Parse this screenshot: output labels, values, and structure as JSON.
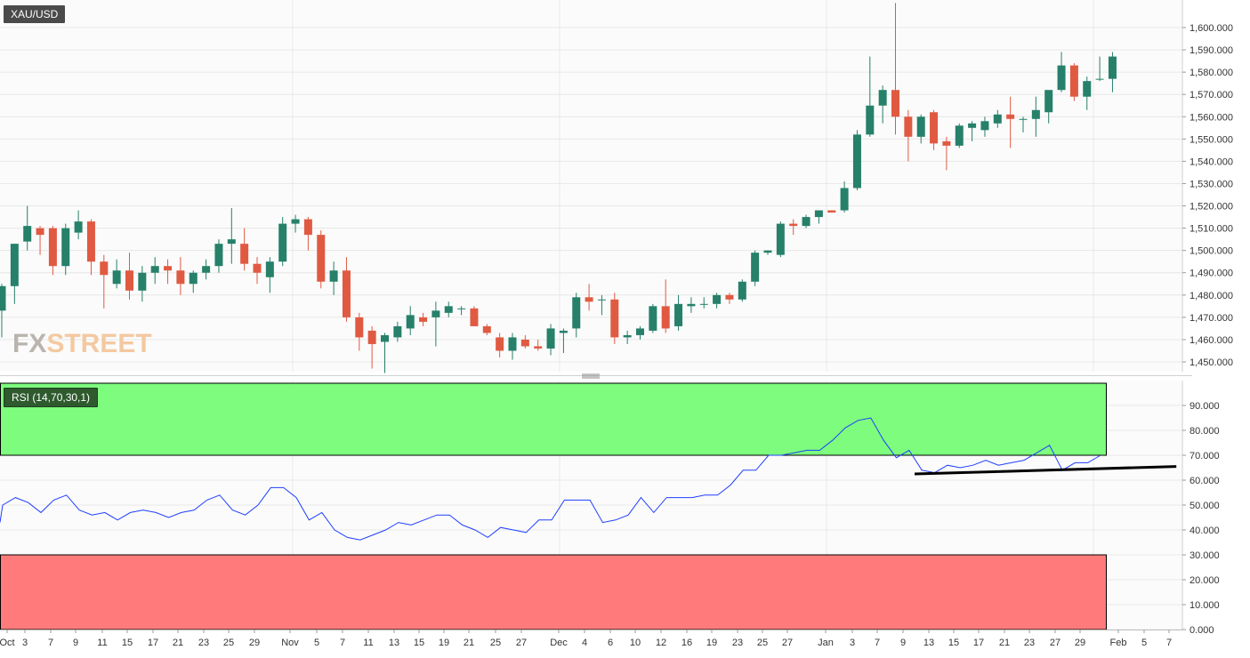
{
  "chart_title": "XAU/USD",
  "watermark": {
    "part1": "FX",
    "part2": "STREET"
  },
  "colors": {
    "up": "#26806a",
    "down": "#e05a42",
    "rsi_line": "#1f3fff",
    "overbought_zone": "#7dfc7d",
    "oversold_zone": "#ff7b7b",
    "grid": "#e8e8e8",
    "trendline": "#000000"
  },
  "chart_data": [
    {
      "type": "candlestick",
      "title": "XAU/USD",
      "y_axis_side": "right",
      "ylim": [
        1445,
        1612
      ],
      "y_ticks": [
        "1,450.000",
        "1,460.000",
        "1,470.000",
        "1,480.000",
        "1,490.000",
        "1,500.000",
        "1,510.000",
        "1,520.000",
        "1,530.000",
        "1,540.000",
        "1,550.000",
        "1,560.000",
        "1,570.000",
        "1,580.000",
        "1,590.000",
        "1,600.000"
      ],
      "y_tick_values": [
        1450,
        1460,
        1470,
        1480,
        1490,
        1500,
        1510,
        1520,
        1530,
        1540,
        1550,
        1560,
        1570,
        1580,
        1590,
        1600
      ],
      "x_tick_labels": [
        "Oct",
        "3",
        "7",
        "9",
        "11",
        "15",
        "17",
        "21",
        "23",
        "25",
        "29",
        "Nov",
        "5",
        "7",
        "11",
        "13",
        "15",
        "19",
        "21",
        "25",
        "27",
        "Dec",
        "4",
        "6",
        "10",
        "12",
        "16",
        "19",
        "23",
        "25",
        "27",
        "Jan",
        "3",
        "7",
        "9",
        "13",
        "15",
        "17",
        "21",
        "23",
        "27",
        "29",
        "Feb",
        "5",
        "7"
      ],
      "candles": [
        {
          "o": 1473,
          "h": 1485,
          "l": 1461,
          "c": 1484
        },
        {
          "o": 1484,
          "h": 1503,
          "l": 1476,
          "c": 1503
        },
        {
          "o": 1504,
          "h": 1520,
          "l": 1500,
          "c": 1511
        },
        {
          "o": 1510,
          "h": 1511,
          "l": 1498,
          "c": 1507
        },
        {
          "o": 1510,
          "h": 1511,
          "l": 1489,
          "c": 1493
        },
        {
          "o": 1493,
          "h": 1512,
          "l": 1489,
          "c": 1510
        },
        {
          "o": 1508,
          "h": 1518,
          "l": 1505,
          "c": 1513
        },
        {
          "o": 1513,
          "h": 1514,
          "l": 1489,
          "c": 1495
        },
        {
          "o": 1495,
          "h": 1498,
          "l": 1474,
          "c": 1489
        },
        {
          "o": 1485,
          "h": 1496,
          "l": 1483,
          "c": 1491
        },
        {
          "o": 1491,
          "h": 1499,
          "l": 1478,
          "c": 1482
        },
        {
          "o": 1482,
          "h": 1493,
          "l": 1477,
          "c": 1490
        },
        {
          "o": 1490,
          "h": 1497,
          "l": 1485,
          "c": 1493
        },
        {
          "o": 1493,
          "h": 1496,
          "l": 1485,
          "c": 1491
        },
        {
          "o": 1491,
          "h": 1497,
          "l": 1480,
          "c": 1485
        },
        {
          "o": 1485,
          "h": 1491,
          "l": 1481,
          "c": 1490
        },
        {
          "o": 1490,
          "h": 1496,
          "l": 1487,
          "c": 1493
        },
        {
          "o": 1493,
          "h": 1505,
          "l": 1490,
          "c": 1503
        },
        {
          "o": 1503,
          "h": 1519,
          "l": 1494,
          "c": 1505
        },
        {
          "o": 1503,
          "h": 1510,
          "l": 1491,
          "c": 1494
        },
        {
          "o": 1494,
          "h": 1497,
          "l": 1485,
          "c": 1490
        },
        {
          "o": 1488,
          "h": 1497,
          "l": 1481,
          "c": 1495
        },
        {
          "o": 1495,
          "h": 1515,
          "l": 1493,
          "c": 1512
        },
        {
          "o": 1512,
          "h": 1516,
          "l": 1508,
          "c": 1514
        },
        {
          "o": 1514,
          "h": 1515,
          "l": 1500,
          "c": 1507
        },
        {
          "o": 1507,
          "h": 1509,
          "l": 1483,
          "c": 1486
        },
        {
          "o": 1486,
          "h": 1495,
          "l": 1480,
          "c": 1491
        },
        {
          "o": 1491,
          "h": 1497,
          "l": 1468,
          "c": 1470
        },
        {
          "o": 1470,
          "h": 1472,
          "l": 1455,
          "c": 1461
        },
        {
          "o": 1464,
          "h": 1466,
          "l": 1447,
          "c": 1458
        },
        {
          "o": 1459,
          "h": 1463,
          "l": 1445,
          "c": 1462
        },
        {
          "o": 1461,
          "h": 1468,
          "l": 1459,
          "c": 1466
        },
        {
          "o": 1465,
          "h": 1475,
          "l": 1462,
          "c": 1471
        },
        {
          "o": 1470,
          "h": 1472,
          "l": 1466,
          "c": 1468
        },
        {
          "o": 1470,
          "h": 1477,
          "l": 1457,
          "c": 1473
        },
        {
          "o": 1472,
          "h": 1477,
          "l": 1470,
          "c": 1475
        },
        {
          "o": 1474,
          "h": 1475,
          "l": 1471,
          "c": 1474
        },
        {
          "o": 1474,
          "h": 1475,
          "l": 1466,
          "c": 1466
        },
        {
          "o": 1466,
          "h": 1467,
          "l": 1462,
          "c": 1463
        },
        {
          "o": 1461,
          "h": 1463,
          "l": 1452,
          "c": 1455
        },
        {
          "o": 1455,
          "h": 1463,
          "l": 1451,
          "c": 1461
        },
        {
          "o": 1460,
          "h": 1462,
          "l": 1456,
          "c": 1457
        },
        {
          "o": 1457,
          "h": 1460,
          "l": 1455,
          "c": 1456
        },
        {
          "o": 1456,
          "h": 1467,
          "l": 1453,
          "c": 1465
        },
        {
          "o": 1463,
          "h": 1465,
          "l": 1454,
          "c": 1464
        },
        {
          "o": 1465,
          "h": 1481,
          "l": 1461,
          "c": 1479
        },
        {
          "o": 1479,
          "h": 1485,
          "l": 1473,
          "c": 1477
        },
        {
          "o": 1478,
          "h": 1480,
          "l": 1471,
          "c": 1478
        },
        {
          "o": 1478,
          "h": 1481,
          "l": 1458,
          "c": 1461
        },
        {
          "o": 1461,
          "h": 1464,
          "l": 1458,
          "c": 1462
        },
        {
          "o": 1462,
          "h": 1466,
          "l": 1460,
          "c": 1465
        },
        {
          "o": 1464,
          "h": 1476,
          "l": 1463,
          "c": 1475
        },
        {
          "o": 1475,
          "h": 1487,
          "l": 1463,
          "c": 1465
        },
        {
          "o": 1466,
          "h": 1480,
          "l": 1464,
          "c": 1476
        },
        {
          "o": 1475,
          "h": 1479,
          "l": 1472,
          "c": 1476
        },
        {
          "o": 1476,
          "h": 1479,
          "l": 1474,
          "c": 1476
        },
        {
          "o": 1476,
          "h": 1481,
          "l": 1474,
          "c": 1480
        },
        {
          "o": 1480,
          "h": 1481,
          "l": 1476,
          "c": 1478
        },
        {
          "o": 1478,
          "h": 1487,
          "l": 1477,
          "c": 1486
        },
        {
          "o": 1486,
          "h": 1500,
          "l": 1484,
          "c": 1499
        },
        {
          "o": 1499,
          "h": 1500,
          "l": 1498,
          "c": 1500
        },
        {
          "o": 1498,
          "h": 1513,
          "l": 1497,
          "c": 1512
        },
        {
          "o": 1512,
          "h": 1514,
          "l": 1507,
          "c": 1511
        },
        {
          "o": 1511,
          "h": 1516,
          "l": 1510,
          "c": 1515
        },
        {
          "o": 1515,
          "h": 1518,
          "l": 1512,
          "c": 1518
        },
        {
          "o": 1518,
          "h": 1518,
          "l": 1517,
          "c": 1517
        },
        {
          "o": 1518,
          "h": 1531,
          "l": 1517,
          "c": 1528
        },
        {
          "o": 1528,
          "h": 1554,
          "l": 1527,
          "c": 1552
        },
        {
          "o": 1552,
          "h": 1587,
          "l": 1551,
          "c": 1565
        },
        {
          "o": 1565,
          "h": 1574,
          "l": 1557,
          "c": 1572
        },
        {
          "o": 1572,
          "h": 1611,
          "l": 1552,
          "c": 1560
        },
        {
          "o": 1560,
          "h": 1563,
          "l": 1540,
          "c": 1551
        },
        {
          "o": 1551,
          "h": 1561,
          "l": 1548,
          "c": 1560
        },
        {
          "o": 1562,
          "h": 1563,
          "l": 1545,
          "c": 1548
        },
        {
          "o": 1549,
          "h": 1551,
          "l": 1536,
          "c": 1547
        },
        {
          "o": 1547,
          "h": 1557,
          "l": 1546,
          "c": 1556
        },
        {
          "o": 1555,
          "h": 1558,
          "l": 1549,
          "c": 1557
        },
        {
          "o": 1554,
          "h": 1560,
          "l": 1551,
          "c": 1558
        },
        {
          "o": 1557,
          "h": 1563,
          "l": 1555,
          "c": 1561
        },
        {
          "o": 1561,
          "h": 1569,
          "l": 1546,
          "c": 1559
        },
        {
          "o": 1559,
          "h": 1560,
          "l": 1553,
          "c": 1559
        },
        {
          "o": 1559,
          "h": 1569,
          "l": 1551,
          "c": 1563
        },
        {
          "o": 1562,
          "h": 1571,
          "l": 1557,
          "c": 1572
        },
        {
          "o": 1572,
          "h": 1589,
          "l": 1571,
          "c": 1583
        },
        {
          "o": 1583,
          "h": 1584,
          "l": 1567,
          "c": 1569
        },
        {
          "o": 1569,
          "h": 1578,
          "l": 1563,
          "c": 1576
        },
        {
          "o": 1577,
          "h": 1587,
          "l": 1576,
          "c": 1577
        },
        {
          "o": 1577,
          "h": 1589,
          "l": 1571,
          "c": 1587
        }
      ]
    },
    {
      "type": "line",
      "title": "RSI (14,70,30,1)",
      "ylim": [
        0,
        100
      ],
      "y_ticks": [
        "0.000",
        "10.000",
        "20.000",
        "30.000",
        "40.000",
        "50.000",
        "60.000",
        "70.000",
        "80.000",
        "90.000"
      ],
      "y_tick_values": [
        0,
        10,
        20,
        30,
        40,
        50,
        60,
        70,
        80,
        90
      ],
      "overbought": 70,
      "oversold": 30,
      "series": [
        {
          "values": [
            43,
            50,
            53,
            51,
            47,
            52,
            54,
            48,
            46,
            47,
            44,
            47,
            48,
            47,
            45,
            47,
            48,
            52,
            54,
            48,
            46,
            50,
            57,
            57,
            53,
            44,
            47,
            40,
            37,
            36,
            38,
            40,
            43,
            42,
            44,
            46,
            46,
            42,
            40,
            37,
            41,
            40,
            39,
            44,
            44,
            52,
            52,
            52,
            43,
            44,
            46,
            53,
            47,
            53,
            53,
            53,
            54,
            54,
            58,
            64,
            64,
            70,
            70,
            71,
            72,
            72,
            76,
            81,
            84,
            85,
            76,
            69,
            72,
            64,
            63,
            66,
            65,
            66,
            68,
            66,
            67,
            68,
            71,
            74,
            64,
            67,
            67,
            70
          ]
        }
      ],
      "trendline": {
        "x_start": 71.5,
        "y_start": 62.5,
        "x_end": 92,
        "y_end": 65.5
      }
    }
  ]
}
